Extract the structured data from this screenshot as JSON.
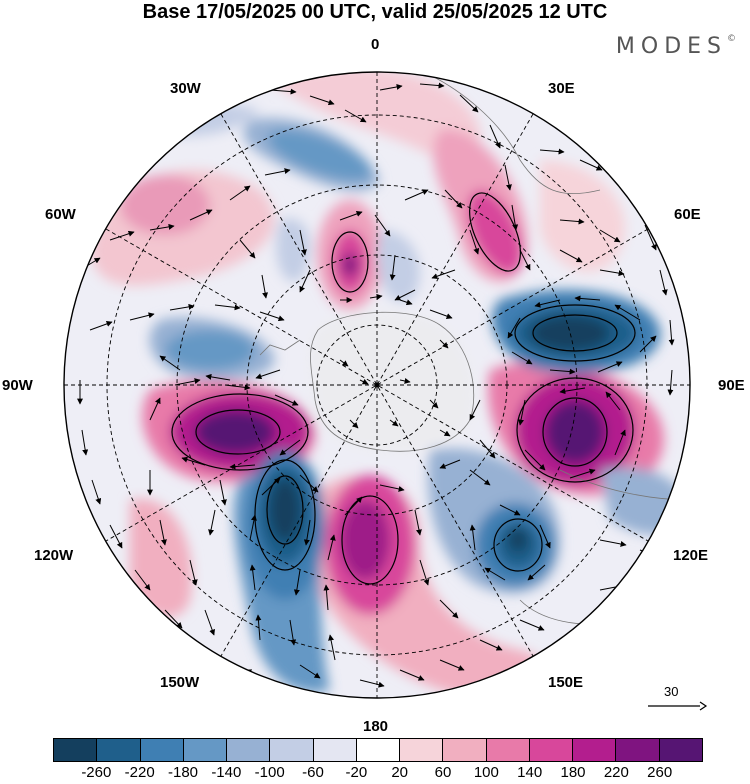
{
  "title": "Base 17/05/2025 00 UTC, valid 25/05/2025 12 UTC",
  "logo": "MODES",
  "logo_mark": "©",
  "meridian_labels": {
    "m0": "0",
    "m30e": "30E",
    "m60e": "60E",
    "m90e": "90E",
    "m120e": "120E",
    "m150e": "150E",
    "m180": "180",
    "m150w": "150W",
    "m120w": "120W",
    "m90w": "90W",
    "m60w": "60W",
    "m30w": "30W"
  },
  "wind_reference": {
    "label": "30"
  },
  "colorbar": {
    "colors": [
      "#143f5e",
      "#1f5f8b",
      "#3f7fb3",
      "#6598c5",
      "#97b1d3",
      "#c3cee5",
      "#e4e6f2",
      "#ffffff",
      "#f6d4da",
      "#f1afc0",
      "#e87aa9",
      "#d8479b",
      "#b31e8e",
      "#7f1480",
      "#561573"
    ],
    "ticks": [
      "-260",
      "-220",
      "-180",
      "-140",
      "-100",
      "-60",
      "-20",
      "20",
      "60",
      "100",
      "140",
      "180",
      "220",
      "260"
    ]
  }
}
